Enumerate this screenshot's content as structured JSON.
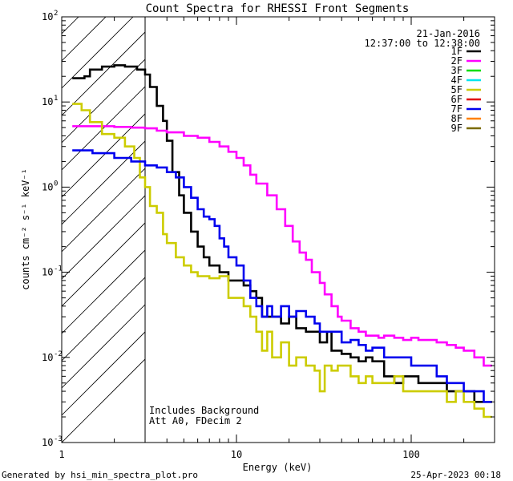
{
  "chart_data": {
    "type": "line",
    "title": "Count Spectra for RHESSI Front Segments",
    "xlabel": "Energy (keV)",
    "ylabel": "counts cm⁻² s⁻¹ keV⁻¹",
    "xscale": "log",
    "yscale": "log",
    "xlim": [
      1,
      300
    ],
    "ylim": [
      0.001,
      100
    ],
    "x_tick_labels": [
      {
        "value": 1,
        "label": "1"
      },
      {
        "value": 10,
        "label": "10"
      },
      {
        "value": 100,
        "label": "100"
      }
    ],
    "y_tick_labels": [
      {
        "value": 100,
        "mant": "10",
        "exp": "2"
      },
      {
        "value": 10,
        "mant": "10",
        "exp": "1"
      },
      {
        "value": 1,
        "mant": "10",
        "exp": "0"
      },
      {
        "value": 0.1,
        "mant": "10",
        "exp": "-1"
      },
      {
        "value": 0.01,
        "mant": "10",
        "exp": "-2"
      },
      {
        "value": 0.001,
        "mant": "10",
        "exp": "-3"
      }
    ],
    "date": "21-Jan-2016",
    "time_range": "12:37:00 to 12:38:00",
    "hatched_region_max_keV": 3,
    "annotations": [
      "Includes Background",
      "Att A0, FDecim 2"
    ],
    "legend": [
      {
        "label": "1F",
        "color": "#000000"
      },
      {
        "label": "2F",
        "color": "#ff00ff"
      },
      {
        "label": "3F",
        "color": "#00dd00"
      },
      {
        "label": "4F",
        "color": "#00e5ee"
      },
      {
        "label": "5F",
        "color": "#cccc00"
      },
      {
        "label": "6F",
        "color": "#e00000"
      },
      {
        "label": "7F",
        "color": "#0000ee"
      },
      {
        "label": "8F",
        "color": "#ff8000"
      },
      {
        "label": "9F",
        "color": "#7a6a00"
      }
    ],
    "series": [
      {
        "name": "1F",
        "color": "#000000",
        "points": [
          [
            1.15,
            19
          ],
          [
            1.35,
            20
          ],
          [
            1.45,
            24
          ],
          [
            1.7,
            26
          ],
          [
            2.0,
            27
          ],
          [
            2.3,
            26
          ],
          [
            2.7,
            24
          ],
          [
            3.0,
            21
          ],
          [
            3.2,
            15
          ],
          [
            3.5,
            9
          ],
          [
            3.8,
            6
          ],
          [
            4.0,
            3.5
          ],
          [
            4.3,
            1.5
          ],
          [
            4.7,
            0.8
          ],
          [
            5.0,
            0.5
          ],
          [
            5.5,
            0.3
          ],
          [
            6.0,
            0.2
          ],
          [
            6.5,
            0.15
          ],
          [
            7.0,
            0.12
          ],
          [
            8.0,
            0.1
          ],
          [
            9.0,
            0.08
          ],
          [
            10.0,
            0.08
          ],
          [
            11.0,
            0.07
          ],
          [
            12.0,
            0.06
          ],
          [
            13.0,
            0.05
          ],
          [
            14.0,
            0.03
          ],
          [
            16.0,
            0.03
          ],
          [
            18.0,
            0.025
          ],
          [
            20.0,
            0.03
          ],
          [
            22.0,
            0.022
          ],
          [
            25.0,
            0.02
          ],
          [
            28.0,
            0.02
          ],
          [
            30.0,
            0.015
          ],
          [
            33.0,
            0.02
          ],
          [
            35.0,
            0.012
          ],
          [
            40.0,
            0.011
          ],
          [
            45.0,
            0.01
          ],
          [
            50.0,
            0.009
          ],
          [
            55.0,
            0.01
          ],
          [
            60.0,
            0.009
          ],
          [
            70.0,
            0.006
          ],
          [
            80.0,
            0.005
          ],
          [
            90.0,
            0.006
          ],
          [
            100.0,
            0.006
          ],
          [
            110.0,
            0.005
          ],
          [
            120.0,
            0.005
          ],
          [
            140.0,
            0.005
          ],
          [
            160.0,
            0.004
          ],
          [
            180.0,
            0.004
          ],
          [
            200.0,
            0.004
          ],
          [
            230.0,
            0.003
          ],
          [
            260.0,
            0.003
          ],
          [
            290.0,
            0.003
          ]
        ]
      },
      {
        "name": "2F",
        "color": "#ff00ff",
        "points": [
          [
            1.15,
            5.2
          ],
          [
            1.5,
            5.2
          ],
          [
            2.0,
            5.1
          ],
          [
            2.5,
            5.0
          ],
          [
            3.0,
            4.9
          ],
          [
            3.5,
            4.6
          ],
          [
            4.0,
            4.4
          ],
          [
            5.0,
            4.0
          ],
          [
            6.0,
            3.8
          ],
          [
            7.0,
            3.4
          ],
          [
            8.0,
            3.0
          ],
          [
            9.0,
            2.6
          ],
          [
            10.0,
            2.2
          ],
          [
            11.0,
            1.8
          ],
          [
            12.0,
            1.4
          ],
          [
            13.0,
            1.1
          ],
          [
            15.0,
            0.8
          ],
          [
            17.0,
            0.55
          ],
          [
            19.0,
            0.35
          ],
          [
            21.0,
            0.23
          ],
          [
            23.0,
            0.17
          ],
          [
            25.0,
            0.14
          ],
          [
            27.0,
            0.1
          ],
          [
            30.0,
            0.075
          ],
          [
            32.0,
            0.055
          ],
          [
            35.0,
            0.04
          ],
          [
            38.0,
            0.03
          ],
          [
            40.0,
            0.027
          ],
          [
            45.0,
            0.022
          ],
          [
            50.0,
            0.02
          ],
          [
            55.0,
            0.018
          ],
          [
            60.0,
            0.018
          ],
          [
            65.0,
            0.017
          ],
          [
            70.0,
            0.018
          ],
          [
            80.0,
            0.017
          ],
          [
            90.0,
            0.016
          ],
          [
            100.0,
            0.017
          ],
          [
            110.0,
            0.016
          ],
          [
            120.0,
            0.016
          ],
          [
            140.0,
            0.015
          ],
          [
            160.0,
            0.014
          ],
          [
            180.0,
            0.013
          ],
          [
            200.0,
            0.012
          ],
          [
            230.0,
            0.01
          ],
          [
            260.0,
            0.008
          ],
          [
            290.0,
            0.008
          ]
        ]
      },
      {
        "name": "5F",
        "color": "#cccc00",
        "points": [
          [
            1.15,
            9.5
          ],
          [
            1.3,
            8.0
          ],
          [
            1.45,
            5.8
          ],
          [
            1.7,
            4.2
          ],
          [
            2.0,
            3.8
          ],
          [
            2.3,
            3.0
          ],
          [
            2.6,
            2.2
          ],
          [
            2.8,
            1.3
          ],
          [
            3.0,
            1.0
          ],
          [
            3.2,
            0.6
          ],
          [
            3.5,
            0.5
          ],
          [
            3.8,
            0.28
          ],
          [
            4.0,
            0.22
          ],
          [
            4.5,
            0.15
          ],
          [
            5.0,
            0.12
          ],
          [
            5.5,
            0.1
          ],
          [
            6.0,
            0.09
          ],
          [
            7.0,
            0.085
          ],
          [
            8.0,
            0.09
          ],
          [
            9.0,
            0.05
          ],
          [
            10.0,
            0.05
          ],
          [
            11.0,
            0.04
          ],
          [
            12.0,
            0.03
          ],
          [
            13.0,
            0.02
          ],
          [
            14.0,
            0.012
          ],
          [
            15.0,
            0.02
          ],
          [
            16.0,
            0.01
          ],
          [
            18.0,
            0.015
          ],
          [
            20.0,
            0.008
          ],
          [
            22.0,
            0.01
          ],
          [
            25.0,
            0.008
          ],
          [
            28.0,
            0.007
          ],
          [
            30.0,
            0.004
          ],
          [
            32.0,
            0.008
          ],
          [
            35.0,
            0.007
          ],
          [
            38.0,
            0.008
          ],
          [
            40.0,
            0.008
          ],
          [
            45.0,
            0.006
          ],
          [
            50.0,
            0.005
          ],
          [
            55.0,
            0.006
          ],
          [
            60.0,
            0.005
          ],
          [
            70.0,
            0.005
          ],
          [
            80.0,
            0.006
          ],
          [
            90.0,
            0.004
          ],
          [
            100.0,
            0.004
          ],
          [
            120.0,
            0.004
          ],
          [
            140.0,
            0.004
          ],
          [
            160.0,
            0.003
          ],
          [
            180.0,
            0.004
          ],
          [
            200.0,
            0.003
          ],
          [
            230.0,
            0.0025
          ],
          [
            260.0,
            0.002
          ],
          [
            290.0,
            0.002
          ]
        ]
      },
      {
        "name": "7F",
        "color": "#0000ee",
        "points": [
          [
            1.15,
            2.7
          ],
          [
            1.5,
            2.5
          ],
          [
            2.0,
            2.2
          ],
          [
            2.5,
            2.0
          ],
          [
            3.0,
            1.8
          ],
          [
            3.5,
            1.7
          ],
          [
            4.0,
            1.5
          ],
          [
            4.5,
            1.3
          ],
          [
            5.0,
            1.0
          ],
          [
            5.5,
            0.75
          ],
          [
            6.0,
            0.55
          ],
          [
            6.5,
            0.45
          ],
          [
            7.0,
            0.42
          ],
          [
            7.5,
            0.35
          ],
          [
            8.0,
            0.25
          ],
          [
            8.5,
            0.2
          ],
          [
            9.0,
            0.15
          ],
          [
            10.0,
            0.12
          ],
          [
            11.0,
            0.08
          ],
          [
            12.0,
            0.05
          ],
          [
            13.0,
            0.04
          ],
          [
            14.0,
            0.03
          ],
          [
            15.0,
            0.04
          ],
          [
            16.0,
            0.03
          ],
          [
            18.0,
            0.04
          ],
          [
            20.0,
            0.03
          ],
          [
            22.0,
            0.035
          ],
          [
            25.0,
            0.03
          ],
          [
            28.0,
            0.025
          ],
          [
            30.0,
            0.02
          ],
          [
            35.0,
            0.02
          ],
          [
            40.0,
            0.015
          ],
          [
            45.0,
            0.016
          ],
          [
            50.0,
            0.014
          ],
          [
            55.0,
            0.012
          ],
          [
            60.0,
            0.013
          ],
          [
            70.0,
            0.01
          ],
          [
            80.0,
            0.01
          ],
          [
            90.0,
            0.01
          ],
          [
            100.0,
            0.008
          ],
          [
            120.0,
            0.008
          ],
          [
            140.0,
            0.006
          ],
          [
            160.0,
            0.005
          ],
          [
            180.0,
            0.005
          ],
          [
            200.0,
            0.004
          ],
          [
            230.0,
            0.004
          ],
          [
            260.0,
            0.003
          ],
          [
            290.0,
            0.003
          ]
        ]
      }
    ]
  },
  "footer": {
    "generated_by": "Generated by hsi_min_spectra_plot.pro",
    "timestamp": "25-Apr-2023 00:18"
  }
}
